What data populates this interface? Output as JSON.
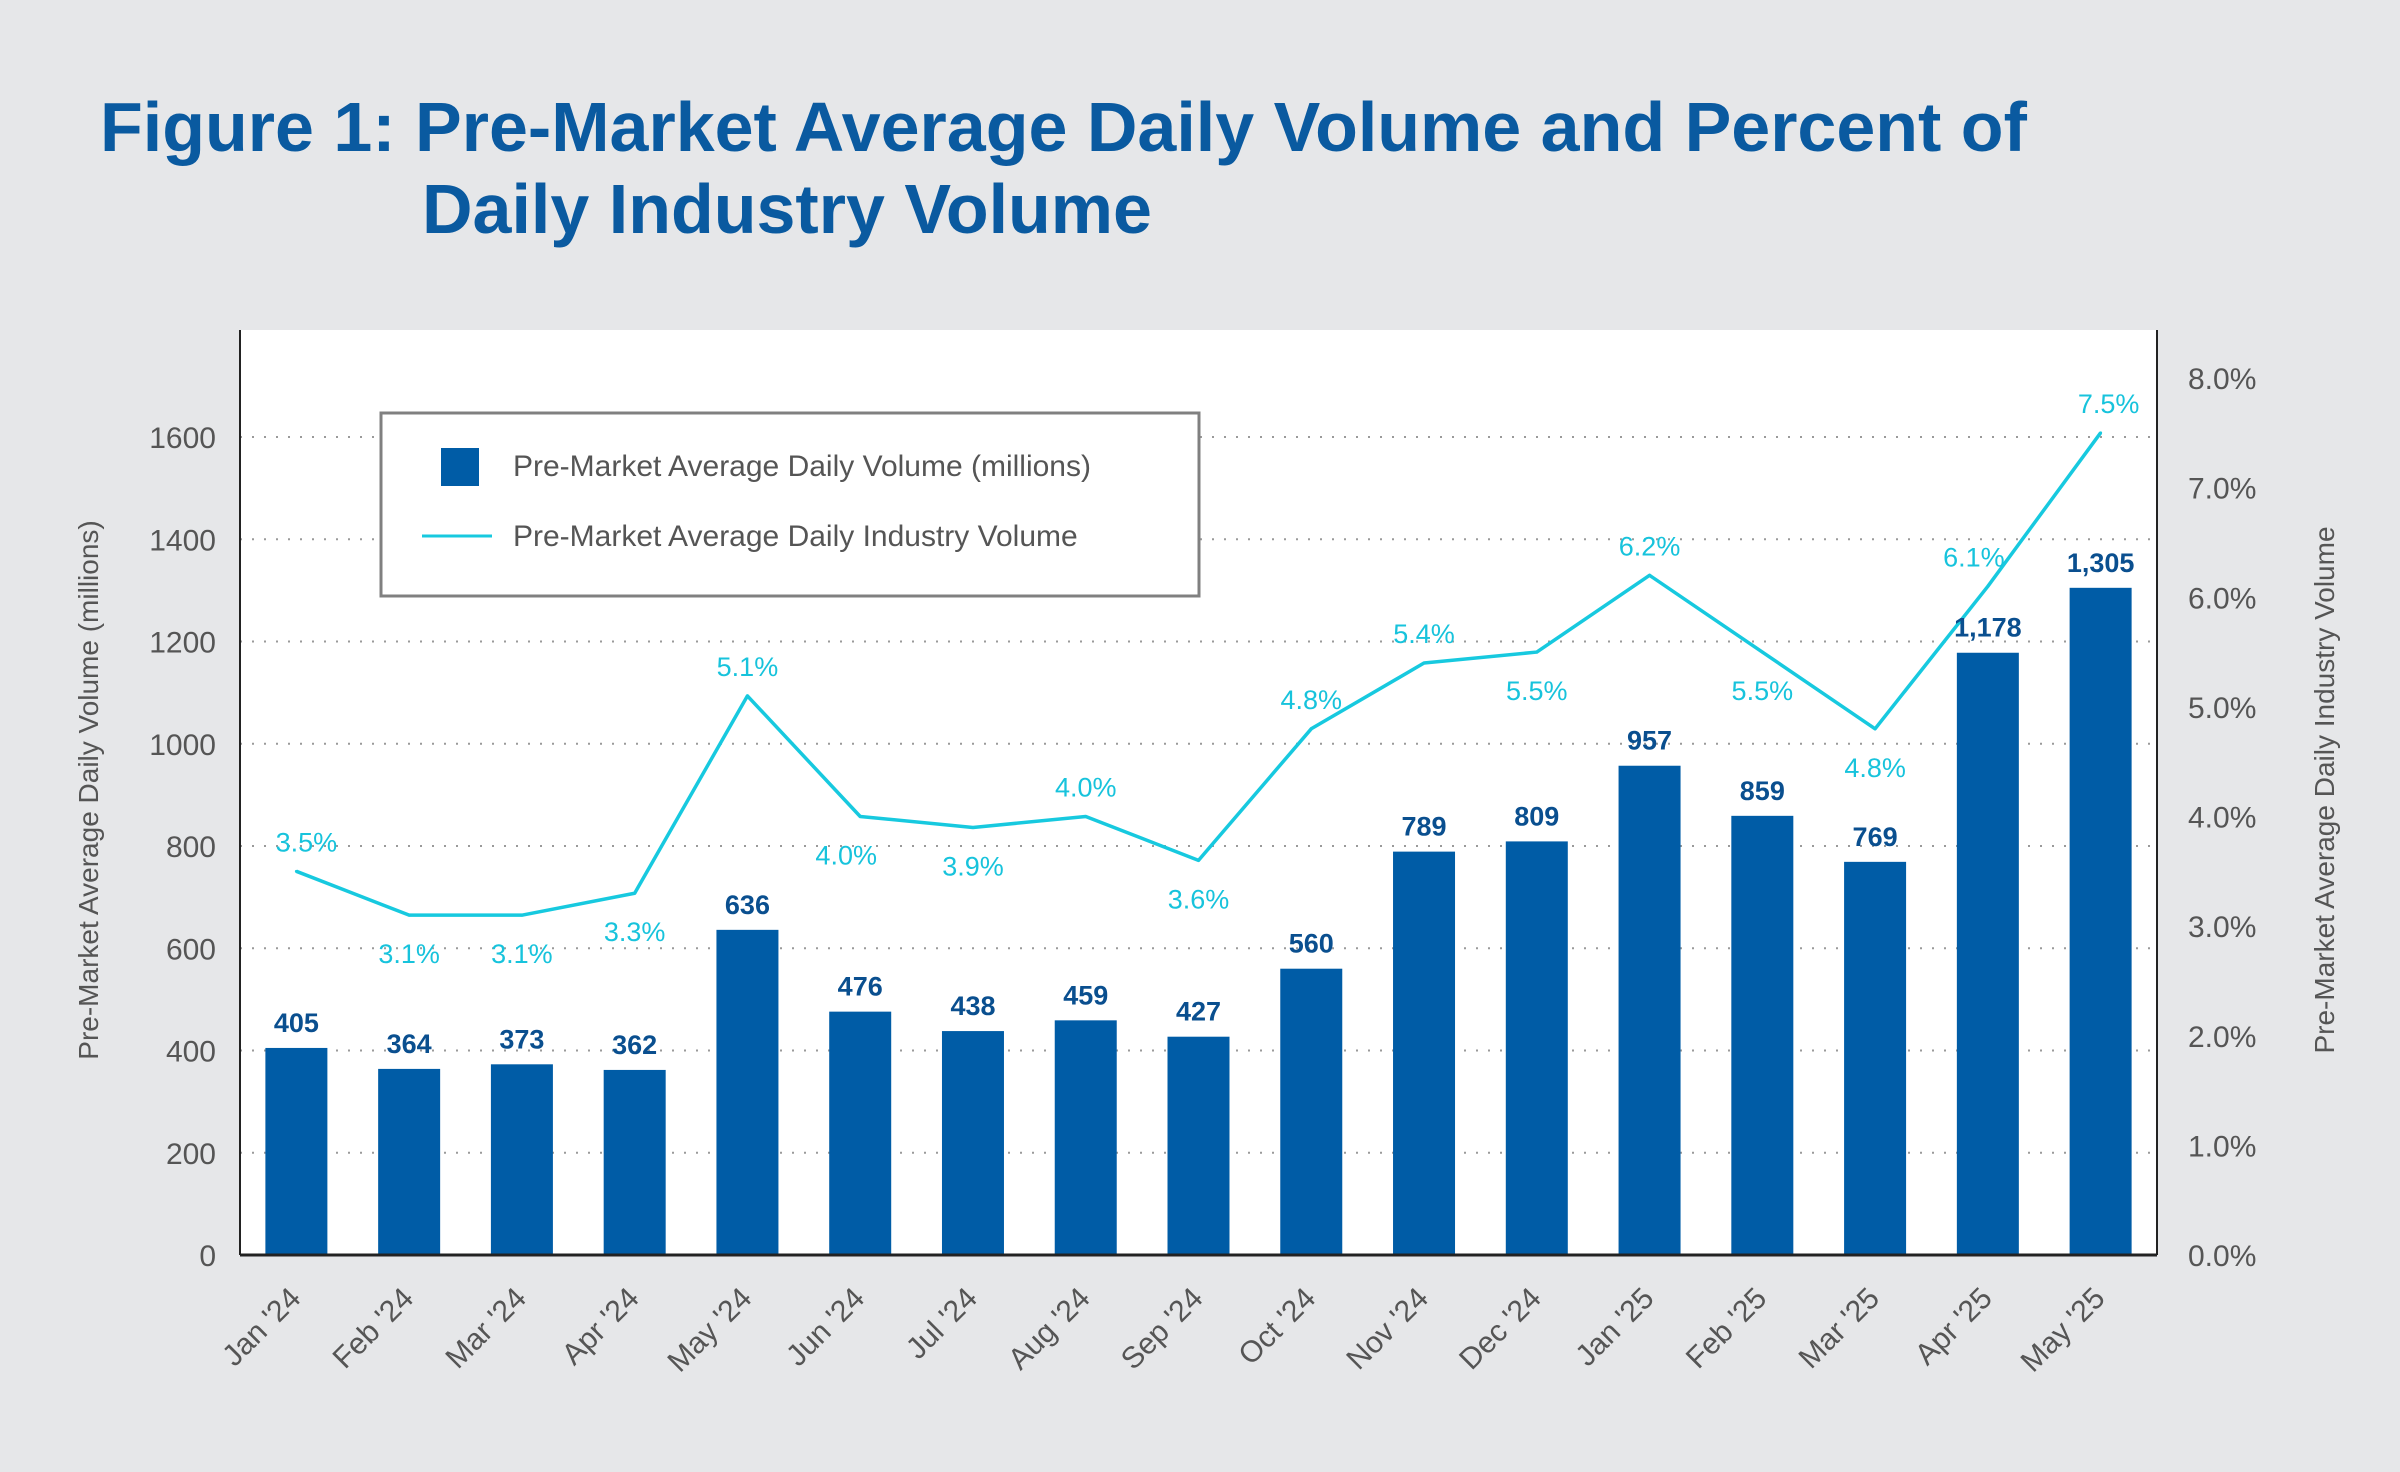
{
  "title_line1": "Figure 1: Pre-Market Average Daily Volume and Percent of",
  "title_line2": "Daily Industry Volume",
  "colors": {
    "bar": "#005ca6",
    "line": "#17c9df",
    "title": "#0a5aa0",
    "axis_text": "#555555"
  },
  "chart_data": {
    "type": "bar+line",
    "title": "Figure 1: Pre-Market Average Daily Volume and Percent of Daily Industry Volume",
    "categories": [
      "Jan '24",
      "Feb '24",
      "Mar '24",
      "Apr '24",
      "May '24",
      "Jun '24",
      "Jul '24",
      "Aug '24",
      "Sep '24",
      "Oct '24",
      "Nov '24",
      "Dec '24",
      "Jan '25",
      "Feb '25",
      "Mar '25",
      "Apr '25",
      "May '25"
    ],
    "series": [
      {
        "name": "Pre-Market Average Daily Volume (millions)",
        "type": "bar",
        "axis": "left",
        "values": [
          405,
          364,
          373,
          362,
          636,
          476,
          438,
          459,
          427,
          560,
          789,
          809,
          957,
          859,
          769,
          1178,
          1305
        ],
        "labels": [
          "405",
          "364",
          "373",
          "362",
          "636",
          "476",
          "438",
          "459",
          "427",
          "560",
          "789",
          "809",
          "957",
          "859",
          "769",
          "1,178",
          "1,305"
        ]
      },
      {
        "name": "Pre-Market Average Daily Industry Volume",
        "type": "line",
        "axis": "right",
        "values": [
          3.5,
          3.1,
          3.1,
          3.3,
          5.1,
          4.0,
          3.9,
          4.0,
          3.6,
          4.8,
          5.4,
          5.5,
          6.2,
          5.5,
          4.8,
          6.1,
          7.5
        ],
        "labels": [
          "3.5%",
          "3.1%",
          "3.1%",
          "3.3%",
          "5.1%",
          "4.0%",
          "3.9%",
          "4.0%",
          "3.6%",
          "4.8%",
          "5.4%",
          "5.5%",
          "6.2%",
          "5.5%",
          "4.8%",
          "6.1%",
          "7.5%"
        ]
      }
    ],
    "ylabel": "Pre-Market Average Daily Volume (millions)",
    "y2label": "Pre-Market Average Daily Industry Volume",
    "ylim": [
      0,
      1850
    ],
    "yticks": [
      0,
      200,
      400,
      600,
      800,
      1000,
      1200,
      1400,
      1600
    ],
    "y2lim": [
      0,
      8.45
    ],
    "y2ticks": [
      "0.0%",
      "1.0%",
      "2.0%",
      "3.0%",
      "4.0%",
      "5.0%",
      "6.0%",
      "7.0%",
      "8.0%"
    ],
    "grid": "dotted horizontal",
    "legend_position": "top-left"
  }
}
